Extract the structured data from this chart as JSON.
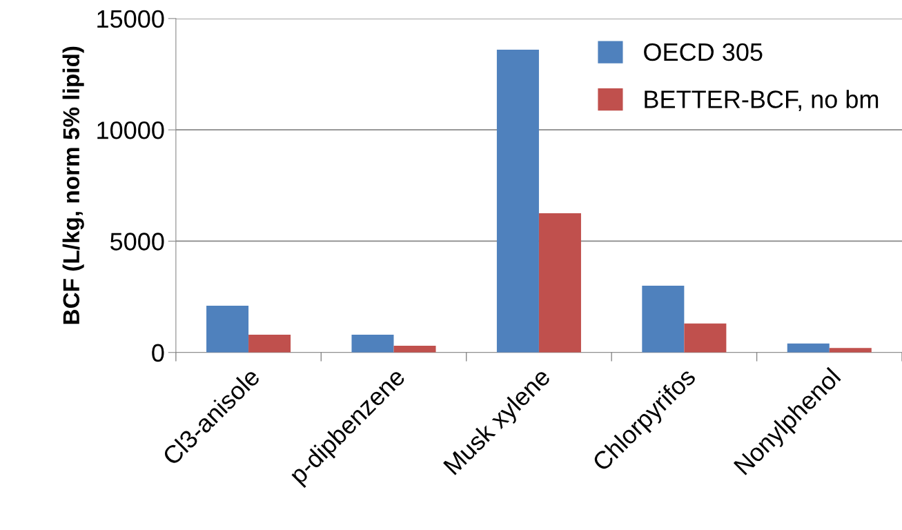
{
  "chart_data": {
    "type": "bar",
    "ylabel": "BCF (L/kg, norm 5% lipid)",
    "categories": [
      "Cl3-anisole",
      "p-dipbenzene",
      "Musk xylene",
      "Chlorpyrifos",
      "Nonylphenol"
    ],
    "series": [
      {
        "name": "OECD 305",
        "color": "#4f81bd",
        "values": [
          2100,
          800,
          13600,
          3000,
          400
        ]
      },
      {
        "name": "BETTER-BCF, no bm",
        "color": "#c0504d",
        "values": [
          800,
          300,
          6250,
          1300,
          200
        ]
      }
    ],
    "ylim": [
      0,
      15000
    ],
    "yticks": [
      0,
      5000,
      10000,
      15000
    ],
    "grid": "y",
    "legend": "top right"
  }
}
